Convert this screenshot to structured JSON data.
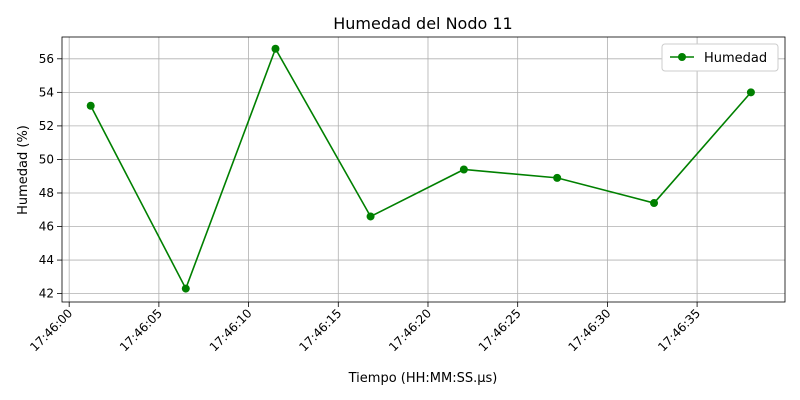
{
  "chart_data": {
    "type": "line",
    "title": "Humedad del Nodo 11",
    "xlabel": "Tiempo (HH:MM:SS.µs)",
    "ylabel": "Humedad (%)",
    "x_ticks": [
      "17:46:00",
      "17:46:05",
      "17:46:10",
      "17:46:15",
      "17:46:20",
      "17:46:25",
      "17:46:30",
      "17:46:35"
    ],
    "y_ticks": [
      "42",
      "44",
      "46",
      "48",
      "50",
      "52",
      "54",
      "56"
    ],
    "ylim": [
      41.5,
      57.3
    ],
    "xlim": [
      "17:45:59.6",
      "17:46:39.9"
    ],
    "grid": true,
    "legend_position": "top-right",
    "series": [
      {
        "name": "Humedad",
        "color": "#008000",
        "marker": "circle",
        "x": [
          "17:46:01.2",
          "17:46:06.5",
          "17:46:11.5",
          "17:46:16.8",
          "17:46:22.0",
          "17:46:27.2",
          "17:46:32.6",
          "17:46:38.0"
        ],
        "y": [
          53.2,
          42.3,
          56.6,
          46.6,
          49.4,
          48.9,
          47.4,
          54.0
        ]
      }
    ]
  }
}
